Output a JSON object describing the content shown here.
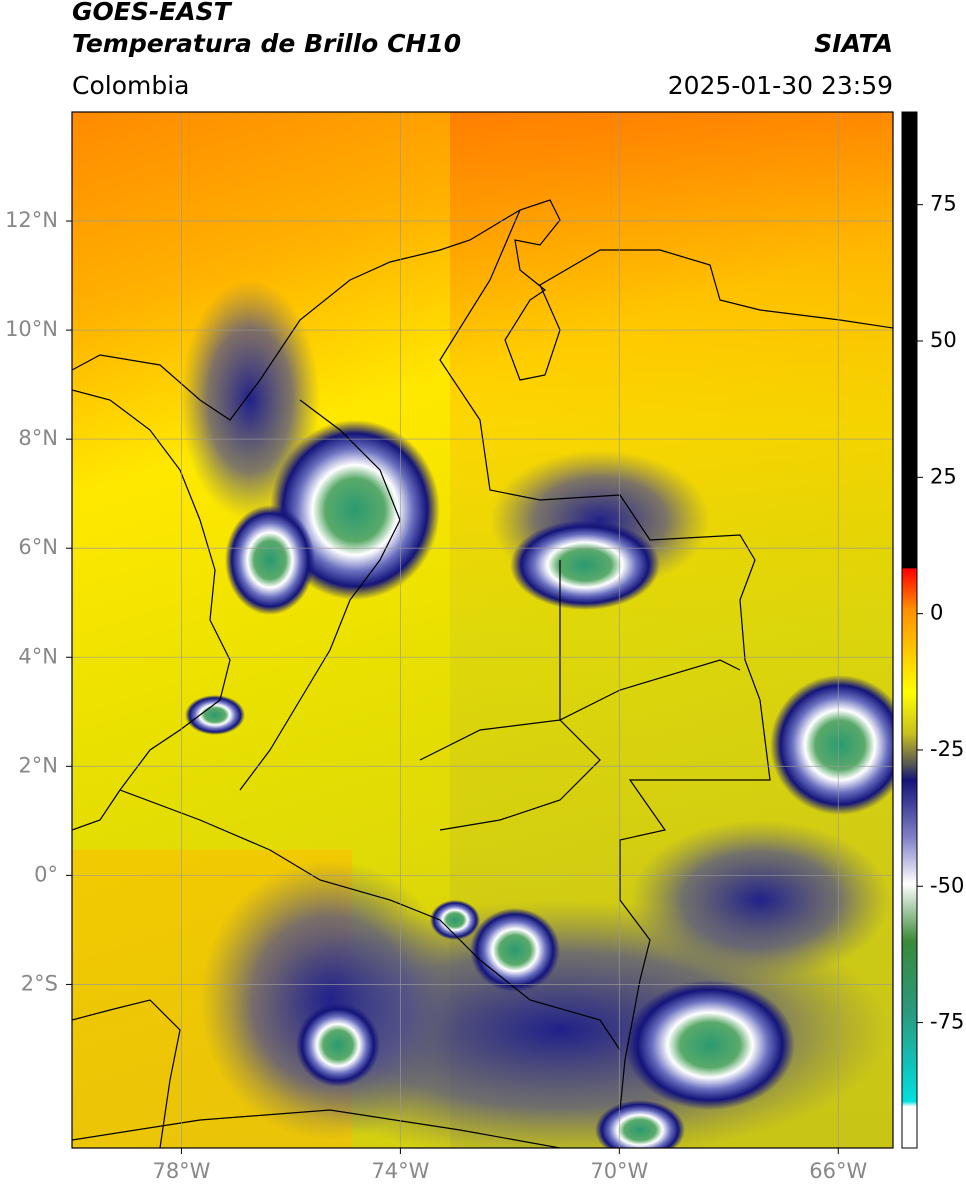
{
  "header": {
    "title": "GOES-EAST",
    "subtitle": "Temperatura de Brillo CH10",
    "region": "Colombia",
    "source": "SIATA",
    "datetime": "2025-01-30 23:59"
  },
  "map": {
    "xlim": [
      -80,
      -65
    ],
    "ylim": [
      -5,
      14
    ],
    "grid": true,
    "xticks": [
      {
        "value": -78,
        "label": "78°W"
      },
      {
        "value": -74,
        "label": "74°W"
      },
      {
        "value": -70,
        "label": "70°W"
      },
      {
        "value": -66,
        "label": "66°W"
      }
    ],
    "yticks": [
      {
        "value": 12,
        "label": "12°N"
      },
      {
        "value": 10,
        "label": "10°N"
      },
      {
        "value": 8,
        "label": "8°N"
      },
      {
        "value": 6,
        "label": "6°N"
      },
      {
        "value": 4,
        "label": "4°N"
      },
      {
        "value": 2,
        "label": "2°N"
      },
      {
        "value": 0,
        "label": "0°"
      },
      {
        "value": -2,
        "label": "2°S"
      }
    ]
  },
  "colorbar": {
    "ylim": [
      -98,
      92
    ],
    "yticks": [
      75,
      50,
      25,
      0,
      -25,
      -50,
      -75
    ]
  }
}
